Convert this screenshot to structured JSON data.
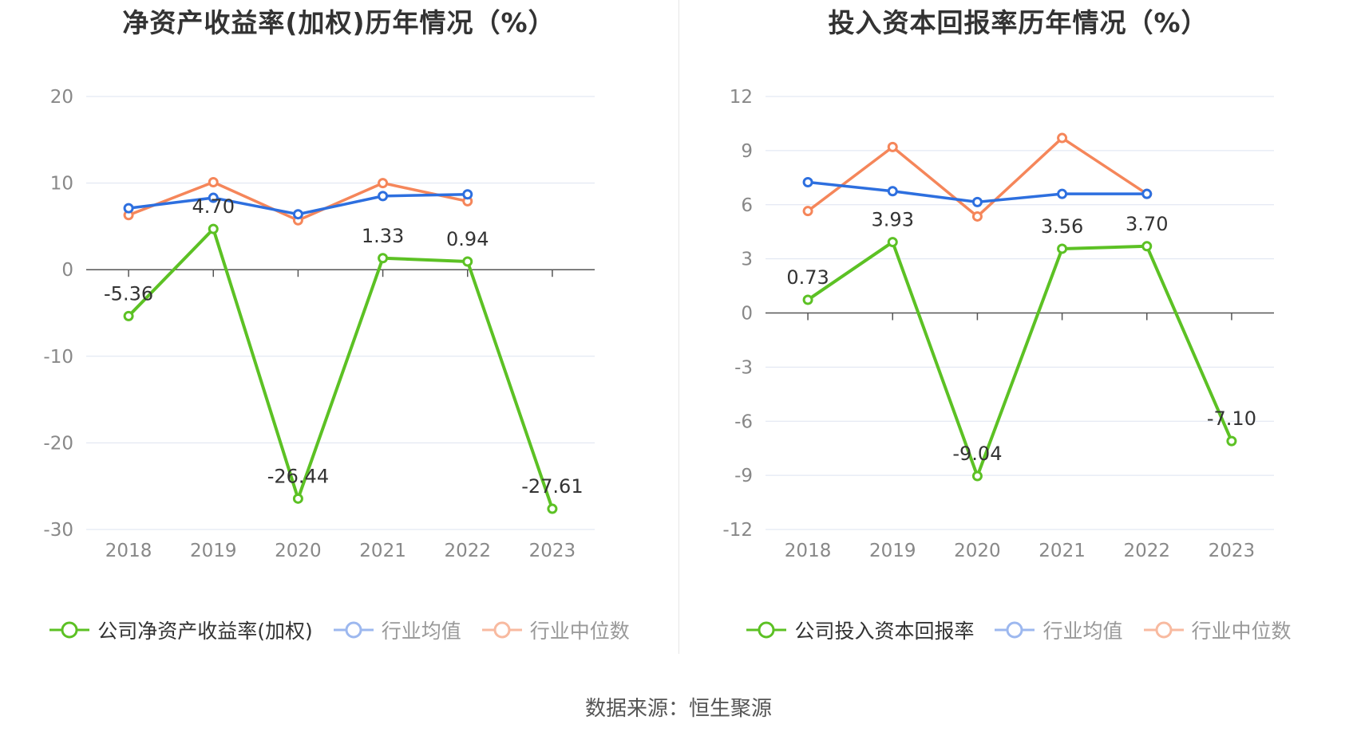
{
  "source_label": "数据来源：恒生聚源",
  "colors": {
    "company": "#5cc124",
    "avg": "#2d6fdf",
    "median": "#f5865a",
    "grid": "#dde3f0",
    "axis_line": "#555555",
    "tick_text": "#888888",
    "label_text": "#333333",
    "legend_text_active": "#333333",
    "legend_text_inactive": "#999999"
  },
  "chart_data": [
    {
      "type": "line",
      "title": "净资产收益率(加权)历年情况（%）",
      "categories": [
        "2018",
        "2019",
        "2020",
        "2021",
        "2022",
        "2023"
      ],
      "ylim": [
        -30,
        20
      ],
      "yticks": [
        20,
        10,
        0,
        -10,
        -20,
        -30
      ],
      "grid": true,
      "legend_position": "bottom",
      "series": [
        {
          "name": "公司净资产收益率(加权)",
          "role": "company",
          "values": [
            -5.36,
            4.7,
            -26.44,
            1.33,
            0.94,
            -27.61
          ],
          "labels": [
            "-5.36",
            "4.70",
            "-26.44",
            "1.33",
            "0.94",
            "-27.61"
          ]
        },
        {
          "name": "行业均值",
          "role": "avg",
          "values": [
            7.1,
            8.3,
            6.4,
            8.5,
            8.7,
            null
          ]
        },
        {
          "name": "行业中位数",
          "role": "median",
          "values": [
            6.3,
            10.1,
            5.7,
            10.0,
            7.9,
            null
          ]
        }
      ]
    },
    {
      "type": "line",
      "title": "投入资本回报率历年情况（%）",
      "categories": [
        "2018",
        "2019",
        "2020",
        "2021",
        "2022",
        "2023"
      ],
      "ylim": [
        -12,
        12
      ],
      "yticks": [
        12,
        9,
        6,
        3,
        0,
        -3,
        -6,
        -9,
        -12
      ],
      "grid": true,
      "legend_position": "bottom",
      "series": [
        {
          "name": "公司投入资本回报率",
          "role": "company",
          "values": [
            0.73,
            3.93,
            -9.04,
            3.56,
            3.7,
            -7.1
          ],
          "labels": [
            "0.73",
            "3.93",
            "-9.04",
            "3.56",
            "3.70",
            "-7.10"
          ]
        },
        {
          "name": "行业均值",
          "role": "avg",
          "values": [
            7.25,
            6.75,
            6.15,
            6.6,
            6.6,
            null
          ]
        },
        {
          "name": "行业中位数",
          "role": "median",
          "values": [
            5.65,
            9.2,
            5.35,
            9.7,
            6.6,
            null
          ]
        }
      ]
    }
  ]
}
